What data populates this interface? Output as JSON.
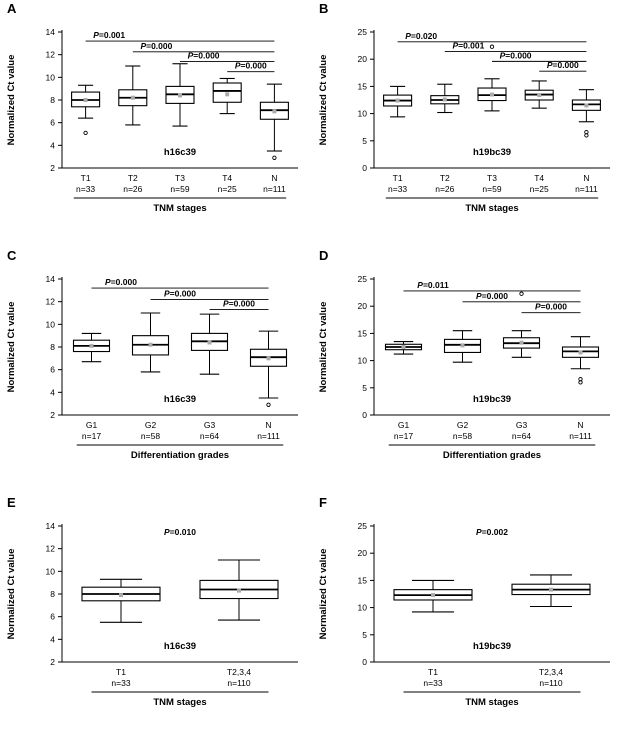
{
  "figure": {
    "background": "#ffffff",
    "ink_color": "#000000",
    "mean_marker_color": "#ababab"
  },
  "chart_data": [
    {
      "panel": "A",
      "type": "box",
      "gene_label": "h16c39",
      "ylabel": "Normalized Ct value",
      "xlabel": "TNM stages",
      "ylim": [
        2,
        14
      ],
      "yticks": [
        2,
        4,
        6,
        8,
        10,
        12,
        14
      ],
      "categories": [
        "T1",
        "T2",
        "T3",
        "T4",
        "N"
      ],
      "n_labels": [
        "n=33",
        "n=26",
        "n=59",
        "n=25",
        "n=111"
      ],
      "boxes": [
        {
          "whisker_low": 6.4,
          "q1": 7.4,
          "median": 8.0,
          "q3": 8.7,
          "whisker_high": 9.3,
          "mean": 8.0,
          "outliers": [
            5.1
          ]
        },
        {
          "whisker_low": 5.8,
          "q1": 7.5,
          "median": 8.2,
          "q3": 8.9,
          "whisker_high": 11.0,
          "mean": 8.2,
          "outliers": []
        },
        {
          "whisker_low": 5.7,
          "q1": 7.7,
          "median": 8.5,
          "q3": 9.2,
          "whisker_high": 11.2,
          "mean": 8.4,
          "outliers": []
        },
        {
          "whisker_low": 6.8,
          "q1": 7.8,
          "median": 8.8,
          "q3": 9.5,
          "whisker_high": 9.9,
          "mean": 8.5,
          "outliers": []
        },
        {
          "whisker_low": 3.5,
          "q1": 6.3,
          "median": 7.1,
          "q3": 7.8,
          "whisker_high": 9.4,
          "mean": 7.0,
          "outliers": [
            2.9
          ]
        }
      ],
      "comparisons": [
        {
          "label": "P=0.001",
          "from": 0,
          "to": 4,
          "y": 13.2
        },
        {
          "label": "P=0.000",
          "from": 1,
          "to": 4,
          "y": 12.25
        },
        {
          "label": "P=0.000",
          "from": 2,
          "to": 4,
          "y": 11.4
        },
        {
          "label": "P=0.000",
          "from": 3,
          "to": 4,
          "y": 10.5
        }
      ],
      "annotations": []
    },
    {
      "panel": "B",
      "type": "box",
      "gene_label": "h19bc39",
      "ylabel": "Normalized Ct value",
      "xlabel": "TNM stages",
      "ylim": [
        0,
        25
      ],
      "yticks": [
        0,
        5,
        10,
        15,
        20,
        25
      ],
      "categories": [
        "T1",
        "T2",
        "T3",
        "T4",
        "N"
      ],
      "n_labels": [
        "n=33",
        "n=26",
        "n=59",
        "n=25",
        "n=111"
      ],
      "boxes": [
        {
          "whisker_low": 9.4,
          "q1": 11.4,
          "median": 12.4,
          "q3": 13.4,
          "whisker_high": 15.0,
          "mean": 12.4,
          "outliers": []
        },
        {
          "whisker_low": 10.2,
          "q1": 11.8,
          "median": 12.5,
          "q3": 13.3,
          "whisker_high": 15.4,
          "mean": 12.6,
          "outliers": []
        },
        {
          "whisker_low": 10.5,
          "q1": 12.4,
          "median": 13.4,
          "q3": 14.7,
          "whisker_high": 16.4,
          "mean": 13.5,
          "outliers": [
            22.3
          ]
        },
        {
          "whisker_low": 11.0,
          "q1": 12.5,
          "median": 13.5,
          "q3": 14.3,
          "whisker_high": 16.0,
          "mean": 13.4,
          "outliers": []
        },
        {
          "whisker_low": 8.5,
          "q1": 10.6,
          "median": 11.7,
          "q3": 12.5,
          "whisker_high": 14.4,
          "mean": 11.5,
          "outliers": [
            6.6,
            6.0
          ]
        }
      ],
      "comparisons": [
        {
          "label": "P=0.020",
          "from": 0,
          "to": 4,
          "y": 23.2
        },
        {
          "label": "P=0.001",
          "from": 1,
          "to": 4,
          "y": 21.4
        },
        {
          "label": "P=0.000",
          "from": 2,
          "to": 4,
          "y": 19.6
        },
        {
          "label": "P=0.000",
          "from": 3,
          "to": 4,
          "y": 17.8
        }
      ],
      "annotations": []
    },
    {
      "panel": "C",
      "type": "box",
      "gene_label": "h16c39",
      "ylabel": "Normalized Ct value",
      "xlabel": "Differentiation grades",
      "ylim": [
        2,
        14
      ],
      "yticks": [
        2,
        4,
        6,
        8,
        10,
        12,
        14
      ],
      "categories": [
        "G1",
        "G2",
        "G3",
        "N"
      ],
      "n_labels": [
        "n=17",
        "n=58",
        "n=64",
        "n=111"
      ],
      "boxes": [
        {
          "whisker_low": 6.7,
          "q1": 7.6,
          "median": 8.1,
          "q3": 8.6,
          "whisker_high": 9.2,
          "mean": 8.1,
          "outliers": []
        },
        {
          "whisker_low": 5.8,
          "q1": 7.3,
          "median": 8.2,
          "q3": 9.0,
          "whisker_high": 11.0,
          "mean": 8.2,
          "outliers": []
        },
        {
          "whisker_low": 5.6,
          "q1": 7.7,
          "median": 8.5,
          "q3": 9.2,
          "whisker_high": 10.9,
          "mean": 8.4,
          "outliers": []
        },
        {
          "whisker_low": 3.5,
          "q1": 6.3,
          "median": 7.1,
          "q3": 7.8,
          "whisker_high": 9.4,
          "mean": 7.0,
          "outliers": [
            2.9
          ]
        }
      ],
      "comparisons": [
        {
          "label": "P=0.000",
          "from": 0,
          "to": 3,
          "y": 13.2
        },
        {
          "label": "P=0.000",
          "from": 1,
          "to": 3,
          "y": 12.2
        },
        {
          "label": "P=0.000",
          "from": 2,
          "to": 3,
          "y": 11.3
        }
      ],
      "annotations": []
    },
    {
      "panel": "D",
      "type": "box",
      "gene_label": "h19bc39",
      "ylabel": "Normalized Ct value",
      "xlabel": "Differentiation grades",
      "ylim": [
        0,
        25
      ],
      "yticks": [
        0,
        5,
        10,
        15,
        20,
        25
      ],
      "categories": [
        "G1",
        "G2",
        "G3",
        "N"
      ],
      "n_labels": [
        "n=17",
        "n=58",
        "n=64",
        "n=111"
      ],
      "boxes": [
        {
          "whisker_low": 11.2,
          "q1": 12.0,
          "median": 12.5,
          "q3": 13.0,
          "whisker_high": 13.5,
          "mean": 12.5,
          "outliers": []
        },
        {
          "whisker_low": 9.7,
          "q1": 11.5,
          "median": 12.9,
          "q3": 13.9,
          "whisker_high": 15.5,
          "mean": 12.8,
          "outliers": []
        },
        {
          "whisker_low": 10.6,
          "q1": 12.3,
          "median": 13.2,
          "q3": 14.2,
          "whisker_high": 15.5,
          "mean": 13.3,
          "outliers": [
            22.3
          ]
        },
        {
          "whisker_low": 8.5,
          "q1": 10.6,
          "median": 11.7,
          "q3": 12.5,
          "whisker_high": 14.4,
          "mean": 11.5,
          "outliers": [
            6.6,
            6.0
          ]
        }
      ],
      "comparisons": [
        {
          "label": "P=0.011",
          "from": 0,
          "to": 3,
          "y": 22.8
        },
        {
          "label": "P=0.000",
          "from": 1,
          "to": 3,
          "y": 20.8
        },
        {
          "label": "P=0.000",
          "from": 2,
          "to": 3,
          "y": 18.8
        }
      ],
      "annotations": []
    },
    {
      "panel": "E",
      "type": "box",
      "gene_label": "h16c39",
      "ylabel": "Normalized Ct value",
      "xlabel": "TNM stages",
      "ylim": [
        2,
        14
      ],
      "yticks": [
        2,
        4,
        6,
        8,
        10,
        12,
        14
      ],
      "categories": [
        "T1",
        "T2,3,4"
      ],
      "n_labels": [
        "n=33",
        "n=110"
      ],
      "boxes": [
        {
          "whisker_low": 5.5,
          "q1": 7.4,
          "median": 8.0,
          "q3": 8.6,
          "whisker_high": 9.3,
          "mean": 7.9,
          "outliers": []
        },
        {
          "whisker_low": 5.7,
          "q1": 7.6,
          "median": 8.4,
          "q3": 9.2,
          "whisker_high": 11.0,
          "mean": 8.3,
          "outliers": []
        }
      ],
      "comparisons": [],
      "annotations": [
        {
          "label": "P=0.010",
          "y": 13.2
        }
      ]
    },
    {
      "panel": "F",
      "type": "box",
      "gene_label": "h19bc39",
      "ylabel": "Normalized Ct value",
      "xlabel": "TNM stages",
      "ylim": [
        0,
        25
      ],
      "yticks": [
        0,
        5,
        10,
        15,
        20,
        25
      ],
      "categories": [
        "T1",
        "T2,3,4"
      ],
      "n_labels": [
        "n=33",
        "n=110"
      ],
      "boxes": [
        {
          "whisker_low": 9.2,
          "q1": 11.4,
          "median": 12.3,
          "q3": 13.3,
          "whisker_high": 15.0,
          "mean": 12.3,
          "outliers": []
        },
        {
          "whisker_low": 10.2,
          "q1": 12.4,
          "median": 13.3,
          "q3": 14.3,
          "whisker_high": 16.0,
          "mean": 13.3,
          "outliers": []
        }
      ],
      "comparisons": [],
      "annotations": [
        {
          "label": "P=0.002",
          "y": 23.3
        }
      ]
    }
  ]
}
